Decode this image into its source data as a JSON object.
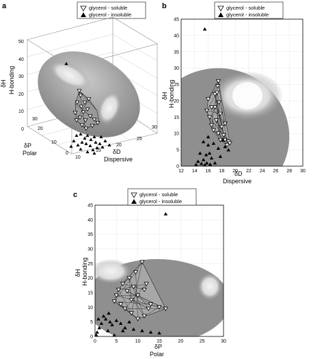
{
  "panels": {
    "a": "a",
    "b": "b",
    "c": "c"
  },
  "legend": {
    "soluble": "glycerol -    soluble",
    "insoluble": "glycerol -   insoluble"
  },
  "colors": {
    "sphere": "#8f8f8f",
    "highlight": "#e6e6e6",
    "hull_fill": "#a9a9a9",
    "grid": "#cfcfcf"
  },
  "chart_data": [
    {
      "panel": "a",
      "type": "scatter",
      "projection": "3d",
      "axes": {
        "x": {
          "label": "δP",
          "sublabel": "Polar",
          "ticks": [
            "0",
            "10",
            "20",
            "30"
          ]
        },
        "y": {
          "label": "δD",
          "sublabel": "Dispersive",
          "ticks": [
            "10",
            "15",
            "20",
            "25",
            "30"
          ]
        },
        "z": {
          "label": "δH",
          "sublabel": "H-bonding",
          "ticks": [
            "0",
            "10",
            "20",
            "30",
            "40",
            "50"
          ]
        }
      },
      "series": [
        {
          "name": "soluble",
          "marker": "triangle-down-open"
        },
        {
          "name": "insoluble",
          "marker": "triangle-up-filled"
        }
      ]
    },
    {
      "panel": "b",
      "type": "scatter",
      "xlabel": "δD",
      "xsublabel": "Dispersive",
      "ylabel": "δH",
      "ysublabel": "H-bonding",
      "xlim": [
        12,
        30
      ],
      "ylim": [
        0,
        45
      ],
      "xticks": [
        12,
        14,
        16,
        18,
        20,
        22,
        24,
        26,
        28,
        30
      ],
      "yticks": [
        0,
        5,
        10,
        15,
        20,
        25,
        30,
        35,
        40,
        45
      ],
      "grid": true,
      "sphere": {
        "center": [
          17.5,
          9
        ],
        "rx": 10.5,
        "ry": 21
      },
      "series": [
        {
          "name": "soluble",
          "marker": "triangle-down-open",
          "points": [
            [
              17.5,
              26
            ],
            [
              17.4,
              24.5
            ],
            [
              17.0,
              22
            ],
            [
              16.0,
              20.5
            ],
            [
              15.8,
              17
            ],
            [
              16.2,
              15
            ],
            [
              17.0,
              18
            ],
            [
              17.6,
              19.5
            ],
            [
              17.8,
              16
            ],
            [
              17.2,
              14
            ],
            [
              16.5,
              12.5
            ],
            [
              18.0,
              12
            ],
            [
              17.5,
              10
            ],
            [
              18.3,
              9.5
            ],
            [
              18.5,
              8
            ],
            [
              19.0,
              7.5
            ],
            [
              18.8,
              6.5
            ],
            [
              17.8,
              8
            ],
            [
              16.8,
              11
            ],
            [
              18.5,
              13
            ],
            [
              19.2,
              7
            ],
            [
              17.3,
              22.5
            ],
            [
              16.5,
              18
            ]
          ]
        },
        {
          "name": "insoluble",
          "marker": "triangle-up-filled",
          "points": [
            [
              15.5,
              42
            ],
            [
              14.5,
              1.5
            ],
            [
              15.0,
              0.8
            ],
            [
              15.3,
              2
            ],
            [
              15.7,
              3.5
            ],
            [
              16.2,
              4
            ],
            [
              16.5,
              2.5
            ],
            [
              15.8,
              1
            ],
            [
              14.8,
              4
            ],
            [
              16.0,
              6.5
            ],
            [
              15.3,
              7.5
            ],
            [
              16.8,
              7
            ],
            [
              17.5,
              5.5
            ],
            [
              18.5,
              6
            ],
            [
              19.0,
              5
            ],
            [
              17.8,
              3
            ],
            [
              14.2,
              0.5
            ],
            [
              15.5,
              0.4
            ],
            [
              16.3,
              0.6
            ],
            [
              17.0,
              1
            ],
            [
              18.2,
              8
            ],
            [
              16.0,
              9
            ]
          ]
        }
      ]
    },
    {
      "panel": "c",
      "type": "scatter",
      "xlabel": "δP",
      "xsublabel": "Polar",
      "ylabel": "δH",
      "ysublabel": "H-bonding",
      "xlim": [
        0,
        30
      ],
      "ylim": [
        0,
        45
      ],
      "xticks": [
        0,
        5,
        10,
        15,
        20,
        25,
        30
      ],
      "yticks": [
        0,
        5,
        10,
        15,
        20,
        25,
        30,
        35,
        40,
        45
      ],
      "grid": true,
      "sphere": {
        "center": [
          14.5,
          12
        ],
        "rx": 17,
        "ry": 14.5
      },
      "series": [
        {
          "name": "soluble",
          "marker": "triangle-down-open",
          "points": [
            [
              11,
              25.5
            ],
            [
              9.5,
              22
            ],
            [
              8,
              20
            ],
            [
              6.5,
              18
            ],
            [
              5.5,
              16
            ],
            [
              5,
              14
            ],
            [
              4.5,
              12
            ],
            [
              6,
              11
            ],
            [
              7,
              9.5
            ],
            [
              8.5,
              8
            ],
            [
              10,
              6
            ],
            [
              11.5,
              7
            ],
            [
              12.5,
              9.5
            ],
            [
              13,
              11
            ],
            [
              15,
              10
            ],
            [
              16.5,
              9.5
            ],
            [
              10,
              14
            ],
            [
              8.5,
              12.5
            ],
            [
              11.5,
              16
            ],
            [
              12,
              18
            ],
            [
              7.5,
              15.5
            ],
            [
              9,
              17
            ]
          ]
        },
        {
          "name": "insoluble",
          "marker": "triangle-up-filled",
          "points": [
            [
              16.5,
              42
            ],
            [
              0.3,
              0.5
            ],
            [
              0.5,
              1.5
            ],
            [
              1,
              3
            ],
            [
              1.5,
              4.5
            ],
            [
              2,
              7
            ],
            [
              2.5,
              6
            ],
            [
              3.2,
              8
            ],
            [
              3.5,
              5
            ],
            [
              4,
              4
            ],
            [
              5,
              5.5
            ],
            [
              6,
              4.5
            ],
            [
              7,
              3
            ],
            [
              9,
              2.5
            ],
            [
              11,
              2
            ],
            [
              13,
              1.5
            ],
            [
              15,
              1.2
            ],
            [
              4.5,
              0.5
            ],
            [
              0.8,
              6
            ],
            [
              6.5,
              2
            ],
            [
              8,
              5
            ],
            [
              3,
              2
            ]
          ]
        }
      ]
    }
  ]
}
